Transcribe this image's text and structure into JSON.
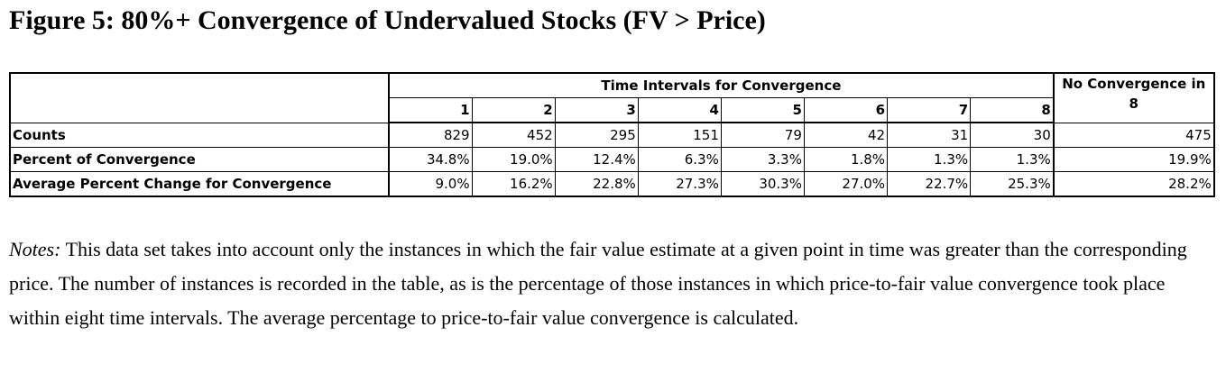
{
  "title": "Figure 5: 80%+ Convergence of Undervalued Stocks (FV > Price)",
  "table": {
    "group_header": "Time Intervals for Convergence",
    "extra_header": "No Convergence in 8",
    "columns": [
      "1",
      "2",
      "3",
      "4",
      "5",
      "6",
      "7",
      "8"
    ],
    "rows": [
      {
        "label": "Counts",
        "cells": [
          "829",
          "452",
          "295",
          "151",
          "79",
          "42",
          "31",
          "30",
          "475"
        ]
      },
      {
        "label": "Percent of Convergence",
        "cells": [
          "34.8%",
          "19.0%",
          "12.4%",
          "6.3%",
          "3.3%",
          "1.8%",
          "1.3%",
          "1.3%",
          "19.9%"
        ]
      },
      {
        "label": "Average Percent Change for Convergence",
        "cells": [
          "9.0%",
          "16.2%",
          "22.8%",
          "27.3%",
          "30.3%",
          "27.0%",
          "22.7%",
          "25.3%",
          "28.2%"
        ]
      }
    ]
  },
  "notes": {
    "label": "Notes:",
    "text": "This data set takes into account only the instances in which the fair value estimate at a given point in time was greater than the corresponding price. The number of instances is recorded in the table, as is the percentage of those instances in which price-to-fair value convergence took place within eight time intervals. The average percentage to price-to-fair value convergence is calculated."
  }
}
